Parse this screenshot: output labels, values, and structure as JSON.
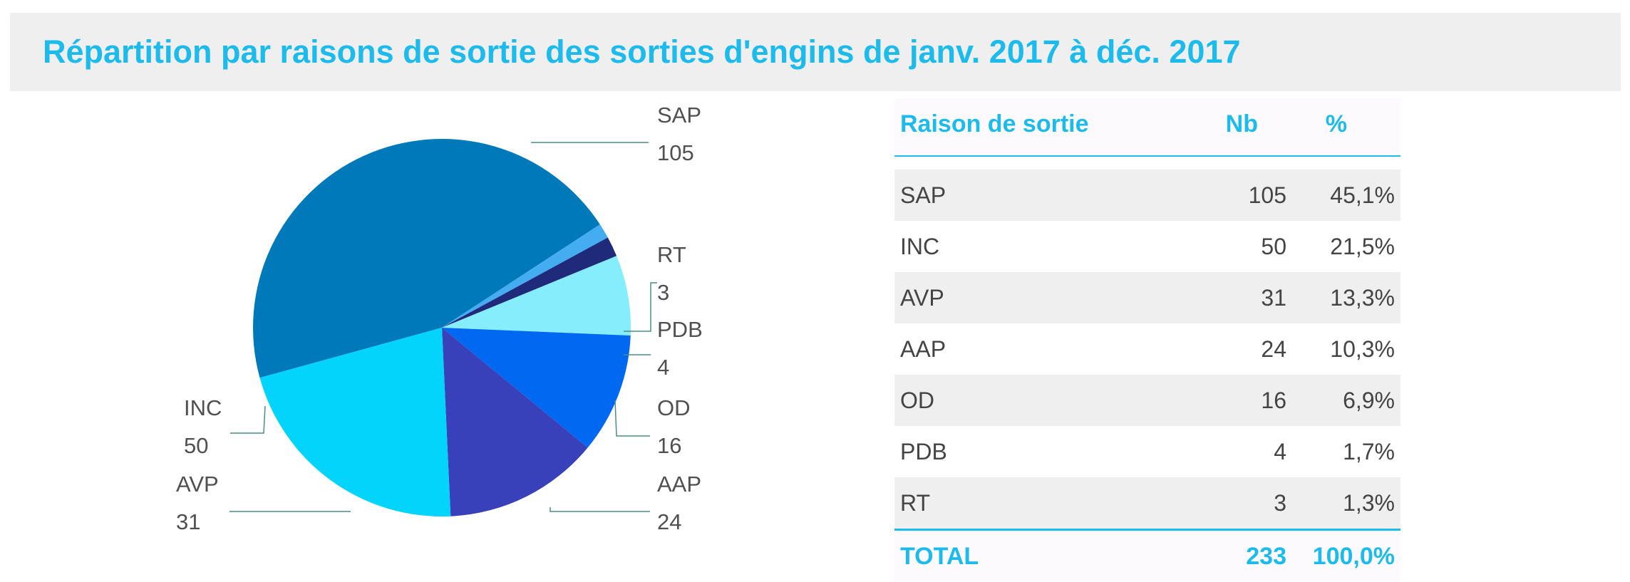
{
  "title": "Répartition par raisons de sortie des sorties d'engins de janv. 2017 à déc. 2017",
  "colors": {
    "SAP": "#0079bb",
    "RT": "#44adf2",
    "PDB": "#1f2a7a",
    "OD": "#85edfc",
    "AAP": "#0168f2",
    "AVP": "#3841b9",
    "INC": "#03d4fb",
    "accent": "#1dbbeb",
    "leader": "#4a8f80"
  },
  "chart_data": {
    "type": "pie",
    "title": "Répartition par raisons de sortie des sorties d'engins de janv. 2017 à déc. 2017",
    "slices": [
      {
        "name": "SAP",
        "value": 105
      },
      {
        "name": "RT",
        "value": 3
      },
      {
        "name": "PDB",
        "value": 4
      },
      {
        "name": "OD",
        "value": 16
      },
      {
        "name": "AAP",
        "value": 24
      },
      {
        "name": "AVP",
        "value": 31
      },
      {
        "name": "INC",
        "value": 50
      }
    ],
    "labels": "outside with leader lines, name and value"
  },
  "table": {
    "headers": {
      "label": "Raison de sortie",
      "nb": "Nb",
      "pct": "%"
    },
    "rows": [
      {
        "label": "SAP",
        "nb": "105",
        "pct": "45,1%"
      },
      {
        "label": "INC",
        "nb": "50",
        "pct": "21,5%"
      },
      {
        "label": "AVP",
        "nb": "31",
        "pct": "13,3%"
      },
      {
        "label": "AAP",
        "nb": "24",
        "pct": "10,3%"
      },
      {
        "label": "OD",
        "nb": "16",
        "pct": "6,9%"
      },
      {
        "label": "PDB",
        "nb": "4",
        "pct": "1,7%"
      },
      {
        "label": "RT",
        "nb": "3",
        "pct": "1,3%"
      }
    ],
    "total": {
      "label": "TOTAL",
      "nb": "233",
      "pct": "100,0%"
    }
  }
}
